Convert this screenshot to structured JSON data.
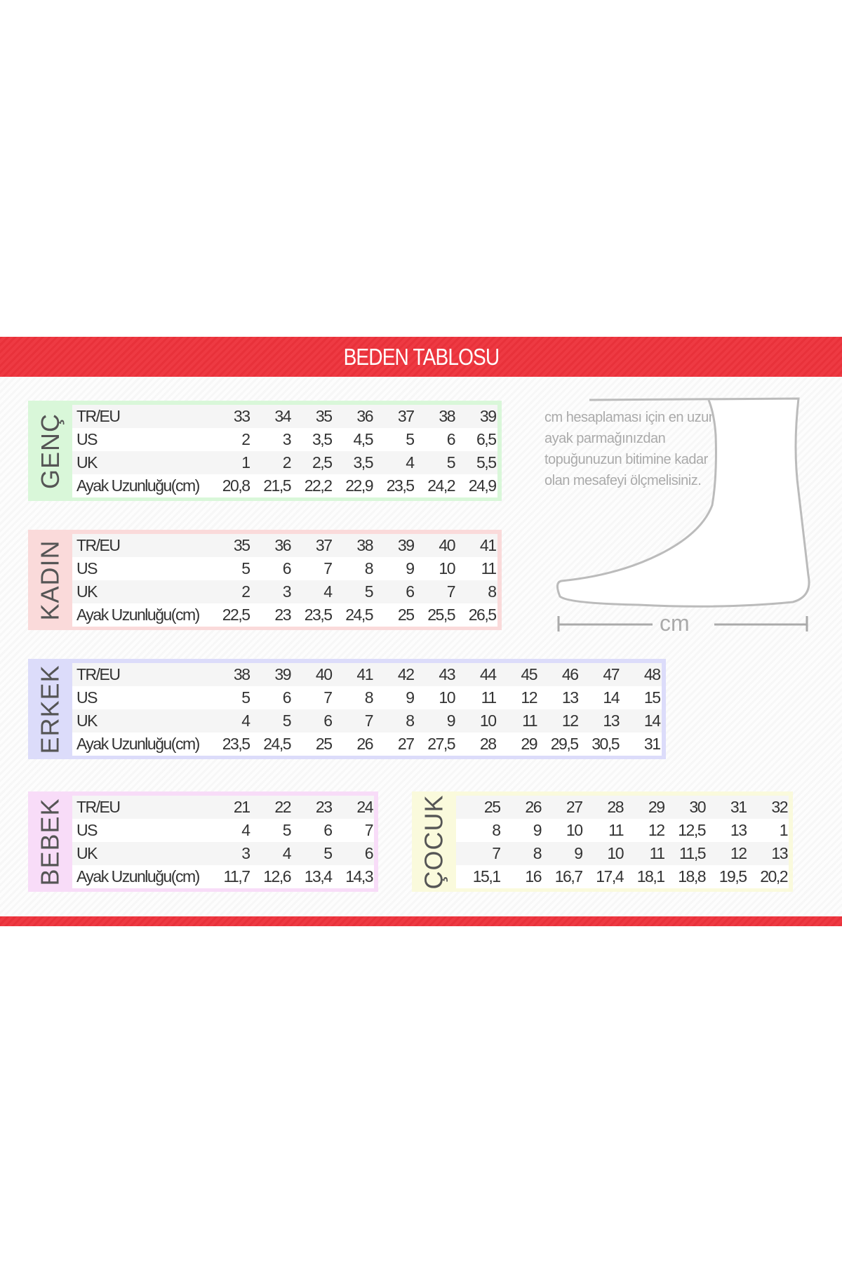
{
  "title": "BEDEN TABLOSU",
  "note": "cm hesaplaması için en uzun ayak parmağınızdan topuğunuzun bitimine kadar olan mesafeyi ölçmelisiniz.",
  "cm_label": "cm",
  "colors": {
    "banner": "#e8313a",
    "genc": "#d9f7d9",
    "kadin": "#fadada",
    "erkek": "#dcdcfa",
    "bebek": "#f8dcf8",
    "cocuk": "#fafadc"
  },
  "tables": [
    {
      "id": "genc",
      "name": "GENÇ",
      "rows": [
        {
          "label": "TR/EU",
          "values": [
            "33",
            "34",
            "35",
            "36",
            "37",
            "38",
            "39"
          ]
        },
        {
          "label": "US",
          "values": [
            "2",
            "3",
            "3,5",
            "4,5",
            "5",
            "6",
            "6,5"
          ]
        },
        {
          "label": "UK",
          "values": [
            "1",
            "2",
            "2,5",
            "3,5",
            "4",
            "5",
            "5,5"
          ]
        },
        {
          "label": "Ayak Uzunluğu(cm)",
          "values": [
            "20,8",
            "21,5",
            "22,2",
            "22,9",
            "23,5",
            "24,2",
            "24,9"
          ]
        }
      ]
    },
    {
      "id": "kadin",
      "name": "KADIN",
      "rows": [
        {
          "label": "TR/EU",
          "values": [
            "35",
            "36",
            "37",
            "38",
            "39",
            "40",
            "41"
          ]
        },
        {
          "label": "US",
          "values": [
            "5",
            "6",
            "7",
            "8",
            "9",
            "10",
            "11"
          ]
        },
        {
          "label": "UK",
          "values": [
            "2",
            "3",
            "4",
            "5",
            "6",
            "7",
            "8"
          ]
        },
        {
          "label": "Ayak Uzunluğu(cm)",
          "values": [
            "22,5",
            "23",
            "23,5",
            "24,5",
            "25",
            "25,5",
            "26,5"
          ]
        }
      ]
    },
    {
      "id": "erkek",
      "name": "ERKEK",
      "rows": [
        {
          "label": "TR/EU",
          "values": [
            "38",
            "39",
            "40",
            "41",
            "42",
            "43",
            "44",
            "45",
            "46",
            "47",
            "48"
          ]
        },
        {
          "label": "US",
          "values": [
            "5",
            "6",
            "7",
            "8",
            "9",
            "10",
            "11",
            "12",
            "13",
            "14",
            "15"
          ]
        },
        {
          "label": "UK",
          "values": [
            "4",
            "5",
            "6",
            "7",
            "8",
            "9",
            "10",
            "11",
            "12",
            "13",
            "14"
          ]
        },
        {
          "label": "Ayak Uzunluğu(cm)",
          "values": [
            "23,5",
            "24,5",
            "25",
            "26",
            "27",
            "27,5",
            "28",
            "29",
            "29,5",
            "30,5",
            "31"
          ]
        }
      ]
    },
    {
      "id": "bebek",
      "name": "BEBEK",
      "rows": [
        {
          "label": "TR/EU",
          "values": [
            "21",
            "22",
            "23",
            "24"
          ]
        },
        {
          "label": "US",
          "values": [
            "4",
            "5",
            "6",
            "7"
          ]
        },
        {
          "label": "UK",
          "values": [
            "3",
            "4",
            "5",
            "6"
          ]
        },
        {
          "label": "Ayak Uzunluğu(cm)",
          "values": [
            "11,7",
            "12,6",
            "13,4",
            "14,3"
          ]
        }
      ]
    },
    {
      "id": "cocuk",
      "name": "ÇOCUK",
      "rows": [
        {
          "label": "",
          "values": [
            "25",
            "26",
            "27",
            "28",
            "29",
            "30",
            "31",
            "32"
          ]
        },
        {
          "label": "",
          "values": [
            "8",
            "9",
            "10",
            "11",
            "12",
            "12,5",
            "13",
            "1"
          ]
        },
        {
          "label": "",
          "values": [
            "7",
            "8",
            "9",
            "10",
            "11",
            "11,5",
            "12",
            "13"
          ]
        },
        {
          "label": "",
          "values": [
            "15,1",
            "16",
            "16,7",
            "17,4",
            "18,1",
            "18,8",
            "19,5",
            "20,2"
          ]
        }
      ]
    }
  ]
}
